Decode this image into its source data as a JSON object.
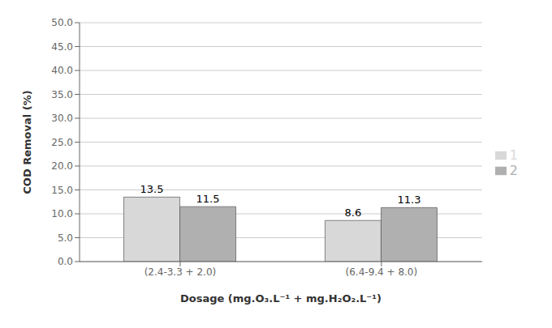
{
  "chart_data": {
    "type": "bar",
    "categories": [
      "(2.4-3.3 + 2.0)",
      "(6.4-9.4 + 8.0)"
    ],
    "series": [
      {
        "name": "1",
        "color": "#d8d8d8",
        "values": [
          13.5,
          8.6
        ]
      },
      {
        "name": "2",
        "color": "#b0b0b0",
        "values": [
          11.5,
          11.3
        ]
      }
    ],
    "xlabel": "Dosage (mg.O₃.L⁻¹ + mg.H₂O₂.L⁻¹)",
    "ylabel": "COD Removal (%)",
    "ylim": [
      0.0,
      50.0
    ],
    "yticks": [
      {
        "value": 0,
        "label": "0.0"
      },
      {
        "value": 5,
        "label": "5.0"
      },
      {
        "value": 10,
        "label": "10.0"
      },
      {
        "value": 15,
        "label": "15.0"
      },
      {
        "value": 20,
        "label": "20.0"
      },
      {
        "value": 25,
        "label": "25.0"
      },
      {
        "value": 30,
        "label": "30.0"
      },
      {
        "value": 35,
        "label": "35.0"
      },
      {
        "value": 40,
        "label": "40.0"
      },
      {
        "value": 45,
        "label": "45.0"
      },
      {
        "value": 50,
        "label": "50.0"
      }
    ],
    "grid": true,
    "legend": "right",
    "data_labels": true
  }
}
